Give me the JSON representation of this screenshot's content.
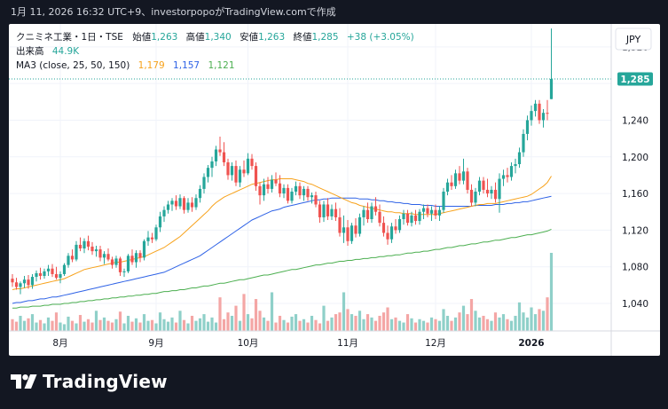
{
  "header": {
    "caption": "1月 11, 2026 16:32 UTC+9、investorpopoがTradingView.comで作成"
  },
  "legend": {
    "symbol": "クニミネ工業・1日・TSE",
    "open_label": "始値",
    "open": "1,263",
    "high_label": "高値",
    "high": "1,340",
    "low_label": "安値",
    "low": "1,263",
    "close_label": "終値",
    "close": "1,285",
    "change": "+38 (+3.05%)",
    "volume_label": "出来高",
    "volume": "44.9K",
    "ma_label": "MA3 (close, 25, 50, 150)",
    "ma_values": [
      "1,179",
      "1,157",
      "1,121"
    ]
  },
  "currency_button": "JPY",
  "last_price_tag": "1,285",
  "brand": "TradingView",
  "colors": {
    "up": "#26a69a",
    "down": "#ef5350",
    "vol_up": "#8fd0c9",
    "vol_down": "#f4a6a5",
    "ma25": "#f7a21b",
    "ma50": "#2e62e6",
    "ma150": "#4caf50",
    "text": "#131722",
    "muted": "#6a6d78",
    "grid": "#f0f3fa"
  },
  "chart_data": {
    "type": "candlestick",
    "y_axis_ticks": [
      1040,
      1080,
      1120,
      1160,
      1200,
      1240,
      1280,
      1320
    ],
    "y_tick_labels": [
      "1,040",
      "1,080",
      "1,120",
      "1,160",
      "1,200",
      "1,240",
      "1,280",
      "1,320"
    ],
    "x_axis_labels": [
      {
        "label": "8月",
        "index": 12
      },
      {
        "label": "9月",
        "index": 36
      },
      {
        "label": "10月",
        "index": 59
      },
      {
        "label": "11月",
        "index": 84
      },
      {
        "label": "12月",
        "index": 106
      },
      {
        "label": "2026",
        "index": 130
      }
    ],
    "ylim": [
      1010,
      1345
    ],
    "bar_count": 136,
    "last_close": 1285,
    "candles": [
      [
        1067,
        1072,
        1058,
        1063
      ],
      [
        1063,
        1068,
        1055,
        1058
      ],
      [
        1058,
        1064,
        1050,
        1062
      ],
      [
        1062,
        1070,
        1057,
        1066
      ],
      [
        1066,
        1071,
        1056,
        1060
      ],
      [
        1060,
        1072,
        1056,
        1069
      ],
      [
        1069,
        1076,
        1064,
        1073
      ],
      [
        1073,
        1079,
        1066,
        1070
      ],
      [
        1070,
        1078,
        1067,
        1075
      ],
      [
        1075,
        1082,
        1070,
        1078
      ],
      [
        1078,
        1083,
        1069,
        1072
      ],
      [
        1072,
        1080,
        1066,
        1068
      ],
      [
        1068,
        1075,
        1062,
        1072
      ],
      [
        1072,
        1084,
        1070,
        1082
      ],
      [
        1082,
        1095,
        1079,
        1092
      ],
      [
        1092,
        1099,
        1085,
        1088
      ],
      [
        1088,
        1108,
        1086,
        1104
      ],
      [
        1104,
        1112,
        1097,
        1100
      ],
      [
        1100,
        1111,
        1095,
        1108
      ],
      [
        1108,
        1114,
        1098,
        1102
      ],
      [
        1102,
        1107,
        1093,
        1097
      ],
      [
        1097,
        1103,
        1091,
        1099
      ],
      [
        1099,
        1103,
        1086,
        1090
      ],
      [
        1090,
        1097,
        1083,
        1094
      ],
      [
        1094,
        1100,
        1086,
        1088
      ],
      [
        1088,
        1091,
        1078,
        1082
      ],
      [
        1082,
        1092,
        1079,
        1089
      ],
      [
        1089,
        1091,
        1070,
        1074
      ],
      [
        1074,
        1078,
        1069,
        1075
      ],
      [
        1075,
        1094,
        1073,
        1092
      ],
      [
        1092,
        1099,
        1082,
        1085
      ],
      [
        1085,
        1098,
        1079,
        1095
      ],
      [
        1095,
        1098,
        1085,
        1090
      ],
      [
        1090,
        1110,
        1087,
        1108
      ],
      [
        1108,
        1119,
        1103,
        1112
      ],
      [
        1112,
        1117,
        1106,
        1110
      ],
      [
        1110,
        1126,
        1108,
        1123
      ],
      [
        1123,
        1140,
        1118,
        1135
      ],
      [
        1135,
        1146,
        1129,
        1142
      ],
      [
        1142,
        1152,
        1138,
        1148
      ],
      [
        1148,
        1155,
        1141,
        1152
      ],
      [
        1152,
        1158,
        1142,
        1146
      ],
      [
        1146,
        1159,
        1143,
        1155
      ],
      [
        1155,
        1157,
        1138,
        1142
      ],
      [
        1142,
        1155,
        1139,
        1150
      ],
      [
        1150,
        1156,
        1140,
        1145
      ],
      [
        1145,
        1159,
        1142,
        1155
      ],
      [
        1155,
        1169,
        1150,
        1165
      ],
      [
        1165,
        1182,
        1160,
        1178
      ],
      [
        1178,
        1191,
        1172,
        1188
      ],
      [
        1188,
        1200,
        1178,
        1195
      ],
      [
        1195,
        1212,
        1190,
        1208
      ],
      [
        1208,
        1222,
        1201,
        1205
      ],
      [
        1205,
        1216,
        1190,
        1194
      ],
      [
        1194,
        1198,
        1175,
        1180
      ],
      [
        1180,
        1194,
        1174,
        1190
      ],
      [
        1190,
        1196,
        1168,
        1172
      ],
      [
        1172,
        1190,
        1167,
        1186
      ],
      [
        1186,
        1196,
        1178,
        1182
      ],
      [
        1182,
        1204,
        1180,
        1198
      ],
      [
        1198,
        1203,
        1186,
        1190
      ],
      [
        1190,
        1194,
        1163,
        1168
      ],
      [
        1168,
        1172,
        1148,
        1158
      ],
      [
        1158,
        1176,
        1152,
        1170
      ],
      [
        1170,
        1178,
        1160,
        1165
      ],
      [
        1165,
        1180,
        1161,
        1175
      ],
      [
        1175,
        1183,
        1168,
        1171
      ],
      [
        1171,
        1180,
        1156,
        1160
      ],
      [
        1160,
        1170,
        1155,
        1166
      ],
      [
        1166,
        1170,
        1149,
        1152
      ],
      [
        1152,
        1166,
        1149,
        1162
      ],
      [
        1162,
        1173,
        1158,
        1168
      ],
      [
        1168,
        1172,
        1154,
        1158
      ],
      [
        1158,
        1168,
        1152,
        1165
      ],
      [
        1165,
        1168,
        1152,
        1156
      ],
      [
        1156,
        1161,
        1149,
        1158
      ],
      [
        1158,
        1162,
        1145,
        1148
      ],
      [
        1148,
        1152,
        1128,
        1134
      ],
      [
        1134,
        1152,
        1129,
        1148
      ],
      [
        1148,
        1155,
        1131,
        1135
      ],
      [
        1135,
        1148,
        1131,
        1143
      ],
      [
        1143,
        1150,
        1130,
        1134
      ],
      [
        1134,
        1144,
        1113,
        1117
      ],
      [
        1117,
        1136,
        1106,
        1123
      ],
      [
        1123,
        1131,
        1103,
        1108
      ],
      [
        1108,
        1128,
        1105,
        1125
      ],
      [
        1125,
        1133,
        1112,
        1116
      ],
      [
        1116,
        1138,
        1113,
        1134
      ],
      [
        1134,
        1146,
        1125,
        1142
      ],
      [
        1142,
        1150,
        1128,
        1132
      ],
      [
        1132,
        1150,
        1128,
        1146
      ],
      [
        1146,
        1156,
        1136,
        1140
      ],
      [
        1140,
        1148,
        1124,
        1128
      ],
      [
        1128,
        1135,
        1113,
        1117
      ],
      [
        1117,
        1125,
        1104,
        1110
      ],
      [
        1110,
        1128,
        1106,
        1124
      ],
      [
        1124,
        1132,
        1116,
        1120
      ],
      [
        1120,
        1136,
        1117,
        1132
      ],
      [
        1132,
        1142,
        1126,
        1138
      ],
      [
        1138,
        1142,
        1125,
        1128
      ],
      [
        1128,
        1140,
        1124,
        1136
      ],
      [
        1136,
        1142,
        1126,
        1130
      ],
      [
        1130,
        1143,
        1126,
        1140
      ],
      [
        1140,
        1148,
        1132,
        1144
      ],
      [
        1144,
        1148,
        1134,
        1138
      ],
      [
        1138,
        1146,
        1130,
        1142
      ],
      [
        1142,
        1148,
        1132,
        1136
      ],
      [
        1136,
        1146,
        1130,
        1142
      ],
      [
        1142,
        1166,
        1139,
        1162
      ],
      [
        1162,
        1176,
        1158,
        1172
      ],
      [
        1172,
        1180,
        1164,
        1168
      ],
      [
        1168,
        1186,
        1165,
        1182
      ],
      [
        1182,
        1190,
        1170,
        1174
      ],
      [
        1174,
        1198,
        1170,
        1184
      ],
      [
        1184,
        1188,
        1160,
        1164
      ],
      [
        1164,
        1170,
        1146,
        1150
      ],
      [
        1150,
        1166,
        1146,
        1162
      ],
      [
        1162,
        1178,
        1158,
        1174
      ],
      [
        1174,
        1178,
        1160,
        1164
      ],
      [
        1164,
        1176,
        1156,
        1160
      ],
      [
        1160,
        1168,
        1154,
        1164
      ],
      [
        1164,
        1172,
        1150,
        1154
      ],
      [
        1154,
        1182,
        1139,
        1176
      ],
      [
        1176,
        1186,
        1168,
        1180
      ],
      [
        1180,
        1188,
        1172,
        1178
      ],
      [
        1178,
        1194,
        1174,
        1190
      ],
      [
        1190,
        1198,
        1182,
        1192
      ],
      [
        1192,
        1210,
        1188,
        1205
      ],
      [
        1205,
        1230,
        1200,
        1225
      ],
      [
        1225,
        1245,
        1218,
        1240
      ],
      [
        1240,
        1256,
        1234,
        1250
      ],
      [
        1250,
        1262,
        1244,
        1258
      ],
      [
        1258,
        1262,
        1236,
        1240
      ],
      [
        1240,
        1252,
        1232,
        1248
      ],
      [
        1248,
        1262,
        1240,
        1247
      ],
      [
        1263,
        1340,
        1263,
        1285
      ]
    ],
    "volume": [
      14,
      11,
      18,
      12,
      15,
      20,
      10,
      13,
      9,
      16,
      12,
      22,
      10,
      8,
      17,
      12,
      9,
      19,
      11,
      14,
      10,
      24,
      13,
      16,
      12,
      10,
      14,
      23,
      9,
      18,
      11,
      15,
      10,
      20,
      12,
      13,
      9,
      22,
      14,
      11,
      16,
      10,
      24,
      13,
      9,
      18,
      12,
      15,
      20,
      11,
      16,
      10,
      40,
      14,
      22,
      18,
      30,
      12,
      44,
      20,
      15,
      38,
      24,
      16,
      12,
      46,
      10,
      18,
      13,
      10,
      17,
      20,
      12,
      14,
      10,
      18,
      13,
      9,
      30,
      12,
      16,
      20,
      22,
      46,
      26,
      20,
      18,
      24,
      14,
      20,
      16,
      12,
      18,
      22,
      28,
      14,
      16,
      12,
      10,
      20,
      15,
      10,
      14,
      12,
      10,
      16,
      14,
      12,
      26,
      18,
      12,
      16,
      22,
      30,
      20,
      38,
      24,
      16,
      18,
      14,
      12,
      22,
      16,
      20,
      14,
      12,
      18,
      34,
      22,
      16,
      28,
      20,
      26,
      24,
      40,
      93
    ],
    "ma25": [
      1055,
      1056,
      1056,
      1057,
      1058,
      1059,
      1060,
      1061,
      1062,
      1063,
      1064,
      1065,
      1066,
      1067,
      1069,
      1071,
      1073,
      1075,
      1077,
      1078,
      1079,
      1080,
      1081,
      1082,
      1083,
      1084,
      1085,
      1085,
      1086,
      1087,
      1088,
      1089,
      1090,
      1091,
      1093,
      1095,
      1097,
      1099,
      1101,
      1104,
      1107,
      1110,
      1113,
      1117,
      1121,
      1125,
      1129,
      1133,
      1137,
      1141,
      1146,
      1150,
      1153,
      1156,
      1158,
      1160,
      1162,
      1164,
      1166,
      1168,
      1170,
      1171,
      1172,
      1173,
      1174,
      1175,
      1175,
      1176,
      1176,
      1176,
      1176,
      1175,
      1174,
      1173,
      1171,
      1170,
      1168,
      1166,
      1164,
      1162,
      1160,
      1158,
      1156,
      1154,
      1152,
      1150,
      1149,
      1147,
      1146,
      1145,
      1144,
      1143,
      1142,
      1141,
      1140,
      1140,
      1139,
      1139,
      1138,
      1138,
      1138,
      1137,
      1137,
      1137,
      1137,
      1137,
      1137,
      1138,
      1139,
      1140,
      1141,
      1142,
      1143,
      1144,
      1145,
      1146,
      1147,
      1148,
      1148,
      1149,
      1149,
      1149,
      1150,
      1151,
      1152,
      1153,
      1154,
      1155,
      1156,
      1157,
      1159,
      1162,
      1165,
      1168,
      1172,
      1179
    ],
    "ma50": [
      1040,
      1041,
      1041,
      1042,
      1043,
      1043,
      1044,
      1045,
      1045,
      1046,
      1047,
      1047,
      1048,
      1049,
      1050,
      1051,
      1052,
      1053,
      1054,
      1055,
      1056,
      1057,
      1058,
      1059,
      1060,
      1061,
      1062,
      1063,
      1064,
      1065,
      1066,
      1067,
      1068,
      1069,
      1070,
      1071,
      1072,
      1073,
      1074,
      1076,
      1078,
      1080,
      1082,
      1084,
      1086,
      1088,
      1090,
      1092,
      1095,
      1098,
      1101,
      1104,
      1107,
      1110,
      1113,
      1116,
      1119,
      1122,
      1125,
      1128,
      1131,
      1133,
      1135,
      1137,
      1139,
      1141,
      1142,
      1143,
      1145,
      1146,
      1147,
      1148,
      1149,
      1150,
      1151,
      1152,
      1153,
      1153,
      1154,
      1154,
      1155,
      1155,
      1155,
      1155,
      1155,
      1155,
      1155,
      1154,
      1154,
      1154,
      1153,
      1153,
      1152,
      1152,
      1151,
      1151,
      1150,
      1150,
      1149,
      1149,
      1148,
      1148,
      1148,
      1147,
      1147,
      1147,
      1146,
      1146,
      1146,
      1146,
      1146,
      1146,
      1146,
      1146,
      1146,
      1146,
      1147,
      1147,
      1147,
      1147,
      1147,
      1148,
      1148,
      1148,
      1149,
      1149,
      1150,
      1150,
      1151,
      1151,
      1152,
      1153,
      1154,
      1155,
      1156,
      1157
    ],
    "ma150": [
      1035,
      1035,
      1036,
      1036,
      1036,
      1037,
      1037,
      1037,
      1038,
      1038,
      1039,
      1039,
      1039,
      1040,
      1040,
      1041,
      1041,
      1042,
      1042,
      1043,
      1043,
      1044,
      1044,
      1045,
      1045,
      1046,
      1046,
      1047,
      1047,
      1048,
      1048,
      1049,
      1049,
      1050,
      1050,
      1051,
      1051,
      1052,
      1053,
      1053,
      1054,
      1054,
      1055,
      1055,
      1056,
      1057,
      1057,
      1058,
      1059,
      1059,
      1060,
      1061,
      1062,
      1062,
      1063,
      1064,
      1065,
      1066,
      1066,
      1067,
      1068,
      1069,
      1070,
      1071,
      1071,
      1072,
      1073,
      1074,
      1075,
      1076,
      1077,
      1077,
      1078,
      1079,
      1080,
      1081,
      1082,
      1082,
      1083,
      1084,
      1084,
      1085,
      1086,
      1086,
      1087,
      1087,
      1088,
      1088,
      1089,
      1089,
      1090,
      1090,
      1091,
      1091,
      1092,
      1092,
      1093,
      1093,
      1094,
      1095,
      1095,
      1096,
      1096,
      1097,
      1097,
      1098,
      1099,
      1099,
      1100,
      1101,
      1101,
      1102,
      1103,
      1103,
      1104,
      1105,
      1105,
      1106,
      1107,
      1107,
      1108,
      1109,
      1109,
      1110,
      1111,
      1112,
      1112,
      1113,
      1114,
      1115,
      1115,
      1116,
      1117,
      1118,
      1119,
      1121
    ]
  }
}
